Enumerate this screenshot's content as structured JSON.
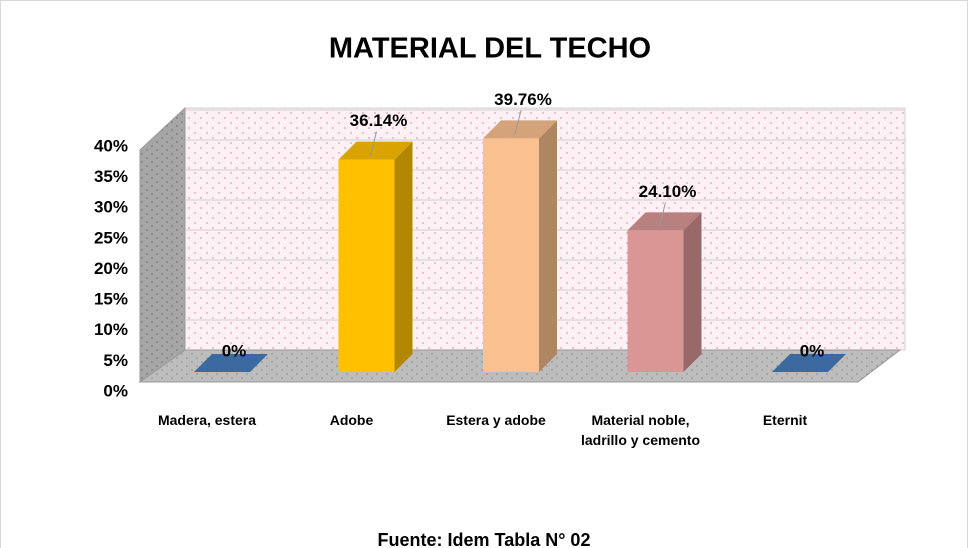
{
  "chart_data": {
    "type": "bar3d",
    "title": "MATERIAL DEL TECHO",
    "categories": [
      "Madera, estera",
      "Adobe",
      "Estera y adobe",
      "Material noble, ladrillo y cemento",
      "Eternit"
    ],
    "values": [
      0,
      36.14,
      39.76,
      24.1,
      0
    ],
    "value_labels": [
      "0%",
      "36.14%",
      "39.76%",
      "24.10%",
      "0%"
    ],
    "colors": [
      "#3a6aa0",
      "#ffc000",
      "#fac08f",
      "#d99694",
      "#3a6aa0"
    ],
    "ylim": [
      0,
      40
    ],
    "yticks": [
      {
        "value": 0,
        "label": "0%"
      },
      {
        "value": 5,
        "label": "5%"
      },
      {
        "value": 10,
        "label": "10%"
      },
      {
        "value": 15,
        "label": "15%"
      },
      {
        "value": 20,
        "label": "20%"
      },
      {
        "value": 25,
        "label": "25%"
      },
      {
        "value": 30,
        "label": "30%"
      },
      {
        "value": 35,
        "label": "35%"
      },
      {
        "value": 40,
        "label": "40%"
      }
    ],
    "grid": true,
    "source": "Fuente: Idem Tabla N° 02"
  }
}
